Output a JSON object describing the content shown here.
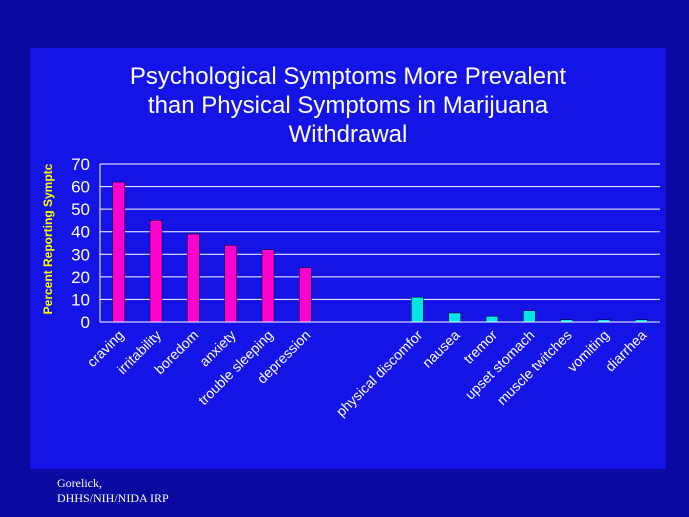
{
  "slide": {
    "source_lines": [
      "Gorelick,",
      "DHHS/NIH/NIDA IRP"
    ]
  },
  "chart_data": {
    "type": "bar",
    "title_lines": [
      "Psychological Symptoms More Prevalent",
      "than Physical Symptoms in Marijuana",
      "Withdrawal"
    ],
    "ylabel": "Percent Reporting Symptc",
    "xlabel": "",
    "ylim": [
      0,
      70
    ],
    "yticks": [
      0,
      10,
      20,
      30,
      40,
      50,
      60,
      70
    ],
    "grid": true,
    "legend": "none",
    "categories": [
      "craving",
      "irritability",
      "boredom",
      "anxiety",
      "trouble sleeping",
      "depression",
      "",
      "",
      "physical discomfor",
      "nausea",
      "tremor",
      "upset stomach",
      "muscle twitches",
      "vomiting",
      "diarrhea"
    ],
    "values": [
      62,
      45,
      39,
      34,
      32,
      24,
      null,
      null,
      11,
      4,
      2.5,
      5,
      1,
      1,
      1
    ],
    "groups": [
      {
        "name": "psychological",
        "color": "#ff00cc",
        "indices": [
          0,
          1,
          2,
          3,
          4,
          5
        ]
      },
      {
        "name": "physical",
        "color": "#00e5e5",
        "indices": [
          8,
          9,
          10,
          11,
          12,
          13,
          14
        ]
      }
    ]
  }
}
